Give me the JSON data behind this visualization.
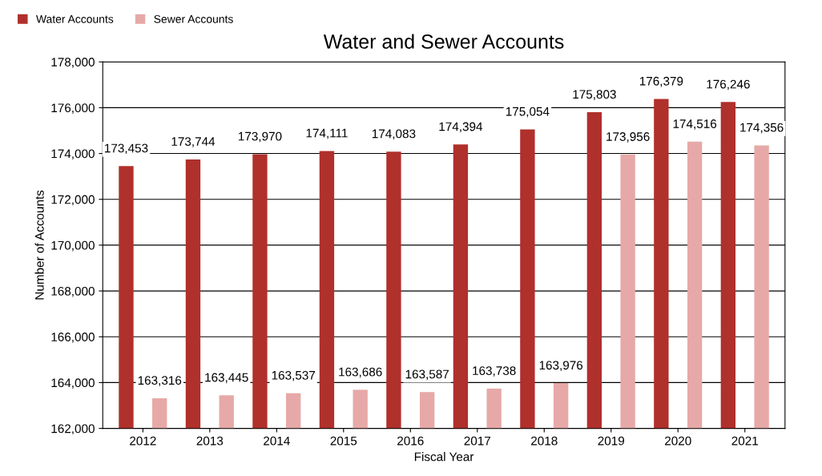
{
  "chart_data": {
    "type": "bar",
    "title": "Water and Sewer Accounts",
    "xlabel": "Fiscal Year",
    "ylabel": "Number of Accounts",
    "categories": [
      "2012",
      "2013",
      "2014",
      "2015",
      "2016",
      "2017",
      "2018",
      "2019",
      "2020",
      "2021"
    ],
    "series": [
      {
        "name": "Water Accounts",
        "color": "#b0302b",
        "values": [
          173453,
          173744,
          173970,
          174111,
          174083,
          174394,
          175054,
          175803,
          176379,
          176246
        ],
        "value_labels": [
          "173,453",
          "173,744",
          "173,970",
          "174,111",
          "174,083",
          "174,394",
          "175,054",
          "175,803",
          "176,379",
          "176,246"
        ]
      },
      {
        "name": "Sewer Accounts",
        "color": "#e6a9a7",
        "values": [
          163316,
          163445,
          163537,
          163686,
          163587,
          163738,
          163976,
          173956,
          174516,
          174356
        ],
        "value_labels": [
          "163,316",
          "163,445",
          "163,537",
          "163,686",
          "163,587",
          "163,738",
          "163,976",
          "173,956",
          "174,516",
          "174,356"
        ]
      }
    ],
    "ylim": [
      162000,
      178000
    ],
    "yticks": [
      {
        "value": 162000,
        "label": "162,000"
      },
      {
        "value": 164000,
        "label": "164,000"
      },
      {
        "value": 166000,
        "label": "166,000"
      },
      {
        "value": 168000,
        "label": "168,000"
      },
      {
        "value": 170000,
        "label": "170,000"
      },
      {
        "value": 172000,
        "label": "172,000"
      },
      {
        "value": 174000,
        "label": "174,000"
      },
      {
        "value": 176000,
        "label": "176,000"
      },
      {
        "value": 178000,
        "label": "178,000"
      }
    ],
    "grid": "y",
    "legend": "top left"
  }
}
